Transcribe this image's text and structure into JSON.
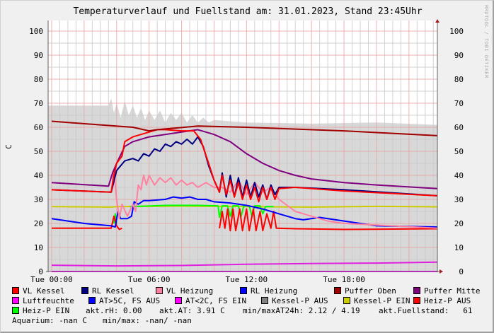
{
  "chart_data": {
    "type": "line",
    "title": "Temperaturverlauf und Fuellstand am: 31.01.2023, Stand 23:45Uhr",
    "ylabel": "C",
    "ylim": [
      0,
      104
    ],
    "yticks": [
      0,
      10,
      20,
      30,
      40,
      50,
      60,
      70,
      80,
      90,
      100
    ],
    "xticks": [
      {
        "t": "00:00",
        "label": "Tue 00:00"
      },
      {
        "t": "06:00",
        "label": "Tue 06:00"
      },
      {
        "t": "12:00",
        "label": "Tue 12:00"
      },
      {
        "t": "18:00",
        "label": "Tue 18:00"
      }
    ],
    "grid": true,
    "watermark": "RRDTOOL / TOBI OETIKER",
    "series": [
      {
        "color": "#d8d8d8",
        "kind": "area",
        "points": [
          [
            "00:00",
            69
          ],
          [
            "03:30",
            69
          ],
          [
            "03:40",
            72
          ],
          [
            "03:50",
            66
          ],
          [
            "04:00",
            70
          ],
          [
            "04:15",
            64
          ],
          [
            "04:30",
            71
          ],
          [
            "04:45",
            65
          ],
          [
            "05:00",
            69
          ],
          [
            "05:15",
            64
          ],
          [
            "05:30",
            68
          ],
          [
            "05:45",
            63
          ],
          [
            "06:00",
            67
          ],
          [
            "06:20",
            63
          ],
          [
            "06:40",
            67
          ],
          [
            "07:00",
            62
          ],
          [
            "07:20",
            66
          ],
          [
            "07:40",
            63
          ],
          [
            "08:00",
            66
          ],
          [
            "08:20",
            62
          ],
          [
            "08:40",
            65
          ],
          [
            "09:00",
            62
          ],
          [
            "09:20",
            64
          ],
          [
            "09:40",
            62
          ],
          [
            "10:00",
            63
          ],
          [
            "12:00",
            62
          ],
          [
            "16:00",
            61.5
          ],
          [
            "20:00",
            62
          ],
          [
            "23:45",
            61
          ]
        ]
      },
      {
        "name": "Kessel-P EIN",
        "color": "#cccc00",
        "points": [
          [
            "00:00",
            27
          ],
          [
            "03:40",
            26.8
          ],
          [
            "04:00",
            27
          ],
          [
            "08:00",
            27.2
          ],
          [
            "12:00",
            27
          ],
          [
            "16:00",
            26.8
          ],
          [
            "20:00",
            27.1
          ],
          [
            "23:45",
            26.9
          ]
        ]
      },
      {
        "name": "Heiz-P EIN",
        "color": "#00ff00",
        "points": [
          [
            "03:50",
            20
          ],
          [
            "03:55",
            24
          ],
          [
            "04:00",
            20
          ],
          null,
          [
            "04:50",
            27
          ],
          [
            "07:00",
            27.5
          ],
          [
            "09:00",
            27.5
          ],
          [
            "10:15",
            27.3
          ],
          [
            "10:20",
            22.5
          ],
          [
            "10:30",
            27.3
          ],
          [
            "10:50",
            27.3
          ],
          [
            "11:00",
            23
          ],
          [
            "11:10",
            27.3
          ],
          [
            "11:30",
            27.3
          ],
          [
            "11:40",
            23
          ],
          [
            "11:50",
            27.3
          ],
          [
            "12:10",
            27.3
          ],
          [
            "12:20",
            23
          ],
          [
            "12:30",
            27.3
          ],
          [
            "12:50",
            27.3
          ],
          [
            "13:00",
            24
          ],
          [
            "13:10",
            27
          ],
          [
            "13:40",
            27
          ]
        ]
      },
      {
        "name": "Heiz-P AUS",
        "color": "#ff0000",
        "points": [
          [
            "00:00",
            18
          ],
          [
            "03:40",
            18
          ],
          [
            "03:50",
            23
          ],
          [
            "04:00",
            19
          ],
          [
            "04:10",
            17.5
          ],
          [
            "04:20",
            18
          ],
          null,
          [
            "10:20",
            18
          ],
          [
            "10:30",
            25
          ],
          [
            "10:40",
            18
          ],
          [
            "10:50",
            26
          ],
          [
            "11:00",
            17
          ],
          [
            "11:10",
            26
          ],
          [
            "11:20",
            17
          ],
          [
            "11:35",
            26
          ],
          [
            "11:45",
            17
          ],
          [
            "12:00",
            26
          ],
          [
            "12:10",
            17
          ],
          [
            "12:25",
            26
          ],
          [
            "12:35",
            17
          ],
          [
            "12:50",
            25
          ],
          [
            "13:00",
            17
          ],
          [
            "13:15",
            24
          ],
          [
            "13:30",
            18
          ],
          [
            "13:40",
            25
          ],
          [
            "13:50",
            18
          ],
          [
            "15:00",
            17.8
          ],
          [
            "18:00",
            17.5
          ],
          [
            "23:45",
            17.8
          ]
        ]
      },
      {
        "name": "RL Heizung",
        "color": "#0000ff",
        "points": [
          [
            "00:00",
            22
          ],
          [
            "02:00",
            20
          ],
          [
            "03:40",
            19
          ],
          [
            "03:55",
            18.5
          ],
          [
            "04:05",
            25
          ],
          [
            "04:15",
            22
          ],
          [
            "04:40",
            22
          ],
          [
            "04:55",
            23
          ],
          [
            "05:05",
            29
          ],
          [
            "05:20",
            28
          ],
          [
            "05:40",
            29.5
          ],
          [
            "06:00",
            29.5
          ],
          [
            "07:00",
            30
          ],
          [
            "07:30",
            31
          ],
          [
            "08:00",
            30.5
          ],
          [
            "08:30",
            31
          ],
          [
            "09:00",
            30
          ],
          [
            "09:30",
            30
          ],
          [
            "10:00",
            29
          ],
          [
            "11:00",
            28.5
          ],
          [
            "12:00",
            27.5
          ],
          [
            "13:00",
            26
          ],
          [
            "14:00",
            24
          ],
          [
            "15:00",
            22
          ],
          [
            "15:30",
            21.5
          ],
          [
            "16:30",
            22.5
          ],
          [
            "18:00",
            21
          ],
          [
            "20:00",
            19
          ],
          [
            "23:45",
            18.5
          ]
        ]
      },
      {
        "name": "VL Heizung",
        "color": "#ff80a0",
        "points": [
          [
            "00:00",
            34
          ],
          [
            "03:40",
            33
          ],
          [
            "03:50",
            42
          ],
          [
            "04:00",
            30
          ],
          [
            "04:10",
            22
          ],
          [
            "04:20",
            28
          ],
          [
            "04:40",
            23
          ],
          [
            "05:00",
            28
          ],
          [
            "05:10",
            25
          ],
          [
            "05:20",
            36
          ],
          [
            "05:30",
            34
          ],
          [
            "05:40",
            40
          ],
          [
            "05:50",
            36
          ],
          [
            "06:00",
            40
          ],
          [
            "06:20",
            36
          ],
          [
            "06:40",
            39
          ],
          [
            "07:00",
            37
          ],
          [
            "07:20",
            39
          ],
          [
            "07:40",
            36
          ],
          [
            "08:00",
            38
          ],
          [
            "08:20",
            36
          ],
          [
            "08:40",
            37
          ],
          [
            "09:00",
            35
          ],
          [
            "09:30",
            37
          ],
          [
            "10:00",
            35
          ],
          [
            "10:30",
            35
          ],
          [
            "11:00",
            33
          ],
          [
            "11:30",
            38
          ],
          [
            "12:00",
            32
          ],
          [
            "12:30",
            37
          ],
          [
            "13:00",
            33
          ],
          [
            "13:30",
            35
          ],
          [
            "14:00",
            30
          ],
          [
            "15:00",
            25
          ],
          [
            "16:00",
            23
          ],
          [
            "17:00",
            21
          ],
          [
            "18:00",
            20
          ],
          [
            "23:45",
            18
          ]
        ]
      },
      {
        "name": "Puffer Mitte",
        "color": "#800080",
        "points": [
          [
            "00:00",
            37
          ],
          [
            "03:30",
            35.5
          ],
          [
            "03:45",
            41
          ],
          [
            "04:00",
            45
          ],
          [
            "04:30",
            52
          ],
          [
            "05:00",
            54
          ],
          [
            "06:00",
            56
          ],
          [
            "08:00",
            58
          ],
          [
            "09:00",
            59
          ],
          [
            "10:00",
            57
          ],
          [
            "11:00",
            54
          ],
          [
            "12:00",
            49
          ],
          [
            "13:00",
            45
          ],
          [
            "14:00",
            42
          ],
          [
            "15:00",
            40
          ],
          [
            "16:00",
            38.5
          ],
          [
            "18:00",
            37
          ],
          [
            "20:00",
            36
          ],
          [
            "23:45",
            34.5
          ]
        ]
      },
      {
        "name": "RL Kessel",
        "color": "#000080",
        "points": [
          [
            "00:00",
            34
          ],
          [
            "03:40",
            33
          ],
          [
            "04:00",
            42
          ],
          [
            "04:30",
            46
          ],
          [
            "05:00",
            47
          ],
          [
            "05:20",
            46
          ],
          [
            "05:40",
            49
          ],
          [
            "06:00",
            48
          ],
          [
            "06:20",
            51
          ],
          [
            "06:40",
            50
          ],
          [
            "07:00",
            53
          ],
          [
            "07:20",
            52
          ],
          [
            "07:40",
            54
          ],
          [
            "08:00",
            53
          ],
          [
            "08:20",
            55
          ],
          [
            "08:40",
            53
          ],
          [
            "09:00",
            56
          ],
          [
            "09:20",
            52
          ],
          [
            "09:40",
            44
          ],
          [
            "10:00",
            38
          ],
          [
            "10:20",
            33
          ],
          [
            "10:30",
            41
          ],
          [
            "10:45",
            31
          ],
          [
            "11:00",
            40
          ],
          [
            "11:15",
            31
          ],
          [
            "11:30",
            39
          ],
          [
            "11:45",
            31
          ],
          [
            "12:00",
            38
          ],
          [
            "12:15",
            31
          ],
          [
            "12:30",
            37
          ],
          [
            "12:45",
            31
          ],
          [
            "13:00",
            36
          ],
          [
            "13:15",
            30
          ],
          [
            "13:30",
            36
          ],
          [
            "13:45",
            32
          ],
          [
            "14:00",
            35
          ],
          [
            "15:00",
            35
          ],
          [
            "18:00",
            34
          ],
          [
            "23:45",
            31.5
          ]
        ]
      },
      {
        "name": "VL Kessel",
        "color": "#ff0000",
        "points": [
          [
            "00:00",
            34
          ],
          [
            "03:40",
            33
          ],
          [
            "03:50",
            40
          ],
          [
            "04:00",
            45
          ],
          [
            "04:20",
            48
          ],
          [
            "04:30",
            54
          ],
          [
            "05:00",
            56
          ],
          [
            "05:30",
            57
          ],
          [
            "06:00",
            58
          ],
          [
            "06:30",
            59
          ],
          [
            "07:00",
            59
          ],
          [
            "08:00",
            58.5
          ],
          [
            "08:45",
            58.5
          ],
          [
            "09:10",
            55
          ],
          [
            "09:40",
            45
          ],
          [
            "10:00",
            38
          ],
          [
            "10:20",
            33
          ],
          [
            "10:30",
            40
          ],
          [
            "10:45",
            32
          ],
          [
            "11:00",
            38
          ],
          [
            "11:15",
            31
          ],
          [
            "11:30",
            37
          ],
          [
            "11:45",
            30
          ],
          [
            "12:00",
            36
          ],
          [
            "12:15",
            30
          ],
          [
            "12:30",
            35
          ],
          [
            "12:45",
            29
          ],
          [
            "13:00",
            35
          ],
          [
            "13:15",
            30
          ],
          [
            "13:30",
            35
          ],
          [
            "13:45",
            30
          ],
          [
            "14:00",
            34.5
          ],
          [
            "15:00",
            35
          ],
          [
            "18:00",
            33.5
          ],
          [
            "23:45",
            31.5
          ]
        ]
      },
      {
        "name": "Puffer Oben",
        "color": "#a00000",
        "points": [
          [
            "00:00",
            62.5
          ],
          [
            "03:00",
            61
          ],
          [
            "05:00",
            60
          ],
          [
            "06:00",
            58.5
          ],
          [
            "06:30",
            59
          ],
          [
            "09:00",
            60.5
          ],
          [
            "12:00",
            60
          ],
          [
            "18:00",
            58.5
          ],
          [
            "23:45",
            56.5
          ]
        ]
      },
      {
        "color": "#e020e0",
        "points": [
          [
            "00:00",
            2.6
          ],
          [
            "04:00",
            2.3
          ],
          [
            "08:00",
            2.5
          ],
          [
            "12:00",
            3.0
          ],
          [
            "16:00",
            3.3
          ],
          [
            "20:00",
            3.5
          ],
          [
            "23:45",
            3.9
          ]
        ]
      },
      {
        "name": "Luftfeuchte",
        "color": "#ff00ff",
        "points": [
          [
            "00:00",
            0
          ],
          [
            "23:45",
            0
          ]
        ]
      }
    ]
  },
  "legend": {
    "items": [
      {
        "label": "VL Kessel",
        "color": "#ff0000"
      },
      {
        "label": "RL Kessel",
        "color": "#000080"
      },
      {
        "label": "VL Heizung",
        "color": "#ff80a0"
      },
      {
        "label": "RL Heizung",
        "color": "#0000ff"
      },
      {
        "label": "Puffer Oben",
        "color": "#a00000"
      },
      {
        "label": "Puffer Mitte",
        "color": "#800080"
      },
      {
        "label": "Luftfeuchte",
        "color": "#ff00ff"
      },
      {
        "label": "AT>5C, FS AUS",
        "color": "#0000ff"
      },
      {
        "label": "AT<2C, FS EIN",
        "color": "#ff00ff"
      },
      {
        "label": "Kessel-P AUS",
        "color": "#808080"
      },
      {
        "label": "Kessel-P EIN",
        "color": "#cccc00"
      },
      {
        "label": "Heiz-P AUS",
        "color": "#ff0000"
      },
      {
        "label": "Heiz-P EIN",
        "color": "#00ff00"
      }
    ],
    "rh": "akt.rH: 0.00",
    "at": "akt.AT: 3.91 C",
    "minmax_at": "min/maxAT24h: 2.12 / 4.19",
    "fuellstand": "akt.Fuellstand:   61",
    "aquarium": "Aquarium: -nan C",
    "aquarium_minmax": "min/max: -nan/ -nan"
  }
}
